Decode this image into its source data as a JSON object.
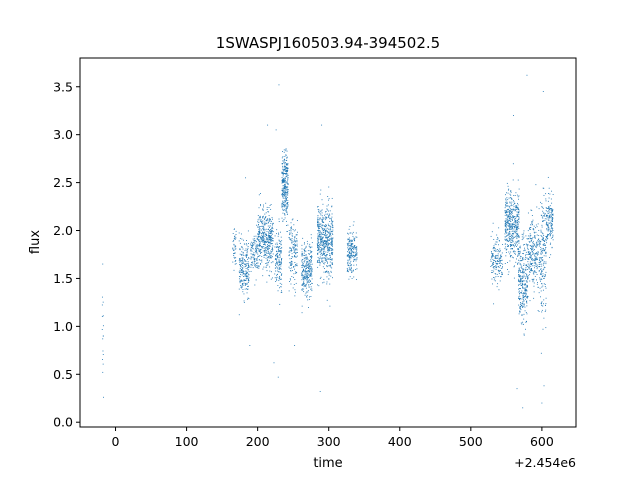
{
  "chart_data": {
    "type": "scatter",
    "title": "1SWASPJ160503.94-394502.5",
    "xlabel": "time",
    "ylabel": "flux",
    "x_offset_label": "+2.454e6",
    "xlim": [
      -50,
      648
    ],
    "ylim": [
      -0.05,
      3.8
    ],
    "x_ticks": [
      0,
      100,
      200,
      300,
      400,
      500,
      600
    ],
    "y_ticks": [
      0.0,
      0.5,
      1.0,
      1.5,
      2.0,
      2.5,
      3.0,
      3.5
    ],
    "x_tick_labels": [
      "0",
      "100",
      "200",
      "300",
      "400",
      "500",
      "600"
    ],
    "y_tick_labels": [
      "0.0",
      "0.5",
      "1.0",
      "1.5",
      "2.0",
      "2.5",
      "3.0",
      "3.5"
    ],
    "grid": false,
    "legend": "none",
    "series_color": "#1f77b4",
    "clusters": [
      {
        "x_start": -19,
        "x_end": -17,
        "y_mean": 1.0,
        "y_spread": 0.45,
        "n": 14
      },
      {
        "x_start": 165,
        "x_end": 170,
        "y_mean": 1.85,
        "y_spread": 0.2,
        "n": 40
      },
      {
        "x_start": 174,
        "x_end": 188,
        "y_mean": 1.6,
        "y_spread": 0.25,
        "n": 220
      },
      {
        "x_start": 190,
        "x_end": 200,
        "y_mean": 1.75,
        "y_spread": 0.2,
        "n": 100
      },
      {
        "x_start": 200,
        "x_end": 222,
        "y_mean": 1.9,
        "y_spread": 0.28,
        "n": 420
      },
      {
        "x_start": 224,
        "x_end": 234,
        "y_mean": 1.7,
        "y_spread": 0.3,
        "n": 150
      },
      {
        "x_start": 234,
        "x_end": 243,
        "y_mean": 2.45,
        "y_spread": 0.32,
        "n": 300
      },
      {
        "x_start": 244,
        "x_end": 256,
        "y_mean": 1.75,
        "y_spread": 0.3,
        "n": 150
      },
      {
        "x_start": 262,
        "x_end": 277,
        "y_mean": 1.6,
        "y_spread": 0.25,
        "n": 280
      },
      {
        "x_start": 284,
        "x_end": 292,
        "y_mean": 1.9,
        "y_spread": 0.35,
        "n": 200
      },
      {
        "x_start": 292,
        "x_end": 306,
        "y_mean": 1.85,
        "y_spread": 0.35,
        "n": 320
      },
      {
        "x_start": 326,
        "x_end": 340,
        "y_mean": 1.78,
        "y_spread": 0.2,
        "n": 200
      },
      {
        "x_start": 528,
        "x_end": 545,
        "y_mean": 1.7,
        "y_spread": 0.25,
        "n": 160
      },
      {
        "x_start": 548,
        "x_end": 568,
        "y_mean": 2.05,
        "y_spread": 0.33,
        "n": 460
      },
      {
        "x_start": 567,
        "x_end": 580,
        "y_mean": 1.45,
        "y_spread": 0.4,
        "n": 280
      },
      {
        "x_start": 580,
        "x_end": 598,
        "y_mean": 1.75,
        "y_spread": 0.35,
        "n": 260
      },
      {
        "x_start": 598,
        "x_end": 606,
        "y_mean": 1.75,
        "y_spread": 0.6,
        "n": 160
      },
      {
        "x_start": 606,
        "x_end": 616,
        "y_mean": 2.1,
        "y_spread": 0.25,
        "n": 150
      }
    ],
    "outliers": [
      {
        "x": -18,
        "y": 1.65
      },
      {
        "x": -18,
        "y": 0.52
      },
      {
        "x": -17,
        "y": 0.26
      },
      {
        "x": 183,
        "y": 2.55
      },
      {
        "x": 189,
        "y": 0.8
      },
      {
        "x": 223,
        "y": 0.62
      },
      {
        "x": 229,
        "y": 0.47
      },
      {
        "x": 230,
        "y": 3.52
      },
      {
        "x": 214,
        "y": 3.1
      },
      {
        "x": 226,
        "y": 3.05
      },
      {
        "x": 252,
        "y": 0.8
      },
      {
        "x": 288,
        "y": 0.32
      },
      {
        "x": 290,
        "y": 3.1
      },
      {
        "x": 565,
        "y": 0.35
      },
      {
        "x": 573,
        "y": 0.15
      },
      {
        "x": 579,
        "y": 3.62
      },
      {
        "x": 600,
        "y": 0.2
      },
      {
        "x": 602,
        "y": 3.45
      },
      {
        "x": 603,
        "y": 0.38
      },
      {
        "x": 560,
        "y": 3.2
      }
    ]
  }
}
